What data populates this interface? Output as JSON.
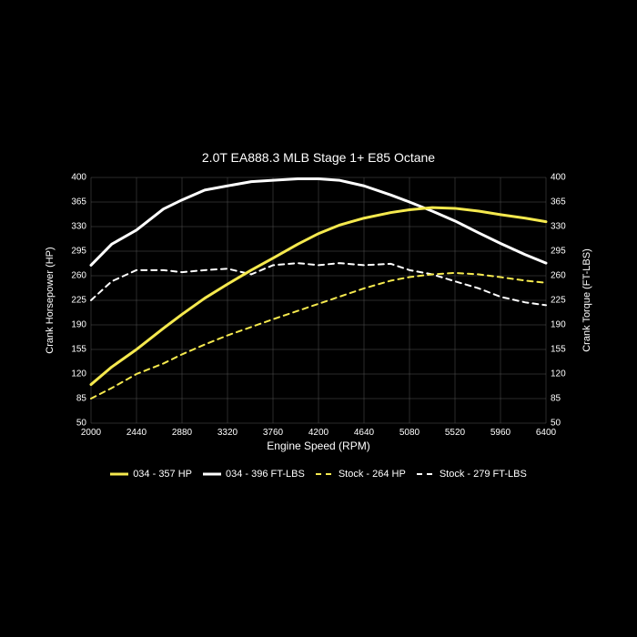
{
  "title": "2.0T EA888.3 MLB Stage 1+ E85 Octane",
  "background_color": "#000000",
  "text_color": "#ffffff",
  "x_axis": {
    "label": "Engine Speed (RPM)",
    "min": 2000,
    "max": 6400,
    "ticks": [
      2000,
      2440,
      2880,
      3320,
      3760,
      4200,
      4640,
      5080,
      5520,
      5960,
      6400
    ]
  },
  "y_axis": {
    "left_label": "Crank Horsepower (HP)",
    "right_label": "Crank Torque (FT-LBS)",
    "min": 50,
    "max": 400,
    "ticks": [
      50,
      85,
      120,
      155,
      190,
      225,
      260,
      295,
      330,
      365,
      400
    ]
  },
  "grid_color": "#555555",
  "series": {
    "hp_034": {
      "label": "034 - 357 HP",
      "color": "#f5e94e",
      "width": 3,
      "dash": "none",
      "data": [
        [
          2000,
          105
        ],
        [
          2200,
          130
        ],
        [
          2440,
          155
        ],
        [
          2700,
          185
        ],
        [
          2880,
          205
        ],
        [
          3100,
          228
        ],
        [
          3320,
          248
        ],
        [
          3550,
          268
        ],
        [
          3760,
          285
        ],
        [
          4000,
          305
        ],
        [
          4200,
          320
        ],
        [
          4400,
          332
        ],
        [
          4640,
          342
        ],
        [
          4900,
          350
        ],
        [
          5080,
          354
        ],
        [
          5300,
          357
        ],
        [
          5520,
          356
        ],
        [
          5750,
          352
        ],
        [
          5960,
          347
        ],
        [
          6200,
          342
        ],
        [
          6400,
          337
        ]
      ]
    },
    "tq_034": {
      "label": "034 - 396 FT-LBS",
      "color": "#ffffff",
      "width": 3,
      "dash": "none",
      "data": [
        [
          2000,
          275
        ],
        [
          2200,
          305
        ],
        [
          2440,
          325
        ],
        [
          2700,
          355
        ],
        [
          2880,
          368
        ],
        [
          3100,
          382
        ],
        [
          3320,
          388
        ],
        [
          3550,
          394
        ],
        [
          3760,
          396
        ],
        [
          4000,
          398
        ],
        [
          4200,
          398
        ],
        [
          4400,
          396
        ],
        [
          4640,
          388
        ],
        [
          4900,
          375
        ],
        [
          5080,
          365
        ],
        [
          5300,
          352
        ],
        [
          5520,
          338
        ],
        [
          5750,
          321
        ],
        [
          5960,
          306
        ],
        [
          6200,
          290
        ],
        [
          6400,
          278
        ]
      ]
    },
    "hp_stock": {
      "label": "Stock - 264 HP",
      "color": "#f5e94e",
      "width": 2,
      "dash": "6,5",
      "data": [
        [
          2000,
          85
        ],
        [
          2200,
          100
        ],
        [
          2440,
          120
        ],
        [
          2700,
          135
        ],
        [
          2880,
          148
        ],
        [
          3100,
          162
        ],
        [
          3320,
          175
        ],
        [
          3550,
          187
        ],
        [
          3760,
          198
        ],
        [
          4000,
          210
        ],
        [
          4200,
          220
        ],
        [
          4400,
          230
        ],
        [
          4640,
          242
        ],
        [
          4900,
          253
        ],
        [
          5080,
          258
        ],
        [
          5300,
          262
        ],
        [
          5520,
          264
        ],
        [
          5750,
          262
        ],
        [
          5960,
          258
        ],
        [
          6200,
          253
        ],
        [
          6400,
          250
        ]
      ]
    },
    "tq_stock": {
      "label": "Stock - 279 FT-LBS",
      "color": "#ffffff",
      "width": 2,
      "dash": "6,5",
      "data": [
        [
          2000,
          225
        ],
        [
          2200,
          252
        ],
        [
          2440,
          268
        ],
        [
          2700,
          268
        ],
        [
          2880,
          265
        ],
        [
          3100,
          268
        ],
        [
          3320,
          270
        ],
        [
          3550,
          262
        ],
        [
          3760,
          275
        ],
        [
          4000,
          278
        ],
        [
          4200,
          275
        ],
        [
          4400,
          278
        ],
        [
          4640,
          275
        ],
        [
          4900,
          277
        ],
        [
          5080,
          268
        ],
        [
          5300,
          262
        ],
        [
          5520,
          252
        ],
        [
          5750,
          242
        ],
        [
          5960,
          230
        ],
        [
          6200,
          222
        ],
        [
          6400,
          218
        ]
      ]
    }
  },
  "legend_order": [
    "hp_034",
    "tq_034",
    "hp_stock",
    "tq_stock"
  ],
  "title_fontsize": 14,
  "axis_label_fontsize": 11,
  "tick_fontsize": 10
}
